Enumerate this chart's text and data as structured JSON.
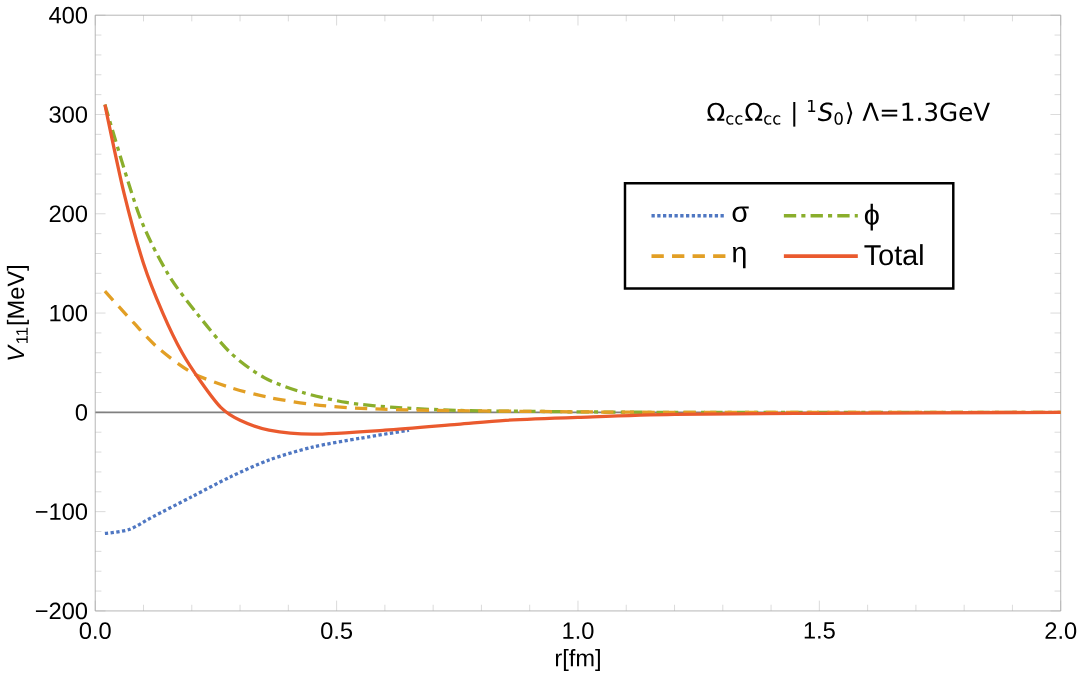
{
  "chart_data": {
    "type": "line",
    "xlabel": "r[fm]",
    "ylabel": "*V*$_{11}$[MeV]",
    "xlim": [
      0,
      2
    ],
    "ylim": [
      -200,
      400
    ],
    "xticks": [
      {
        "value": 0,
        "label": "0.0"
      },
      {
        "value": 0.5,
        "label": "0.5"
      },
      {
        "value": 1,
        "label": "1.0"
      },
      {
        "value": 1.5,
        "label": "1.5"
      },
      {
        "value": 2,
        "label": "2.0"
      }
    ],
    "yticks": [
      {
        "value": -200,
        "label": "−200"
      },
      {
        "value": -100,
        "label": "−100"
      },
      0,
      100,
      200,
      300,
      400
    ],
    "annotations": [
      "Ω$_{cc}$Ω$_{cc}$ | $^{1}$*S*$_{0}$⟩  Λ=1.3GeV"
    ],
    "ref_lines": [
      {
        "axis": "y",
        "value": 0,
        "color": "#808080"
      }
    ],
    "grid": false,
    "legend": "top right",
    "series": [
      {
        "name": "σ",
        "color": "#4f77c2",
        "line_style": "dotted",
        "x": [
          0.02,
          0.07,
          0.12,
          0.2,
          0.28,
          0.36,
          0.45,
          0.55,
          0.65
        ],
        "values": [
          -122,
          -118,
          -105,
          -85,
          -65,
          -48,
          -35,
          -26,
          -18
        ]
      },
      {
        "name": "ϕ",
        "color": "#8aae2c",
        "line_style": "dashdot",
        "x": [
          0.02,
          0.09,
          0.15,
          0.21,
          0.28,
          0.35,
          0.43,
          0.52,
          0.62,
          0.75,
          0.9,
          1.2,
          2.0
        ],
        "values": [
          310,
          200,
          140,
          100,
          60,
          35,
          20,
          10,
          5,
          2,
          1,
          0,
          0
        ]
      },
      {
        "name": "η",
        "color": "#e29f25",
        "line_style": "dashed",
        "x": [
          0.02,
          0.08,
          0.13,
          0.2,
          0.28,
          0.36,
          0.45,
          0.55,
          0.7,
          0.9,
          1.2,
          2.0
        ],
        "values": [
          122,
          90,
          65,
          40,
          25,
          15,
          8,
          4,
          2,
          1,
          0,
          0
        ]
      },
      {
        "name": "Total",
        "color": "#ea5a2e",
        "line_style": "solid",
        "x": [
          0.02,
          0.06,
          0.1,
          0.14,
          0.18,
          0.22,
          0.26,
          0.3,
          0.36,
          0.45,
          0.6,
          0.75,
          0.85,
          1.0,
          1.2,
          1.5,
          2.0
        ],
        "values": [
          310,
          220,
          150,
          100,
          60,
          30,
          5,
          -8,
          -18,
          -22,
          -18,
          -12,
          -8,
          -5,
          -2,
          -1,
          0
        ]
      }
    ]
  }
}
